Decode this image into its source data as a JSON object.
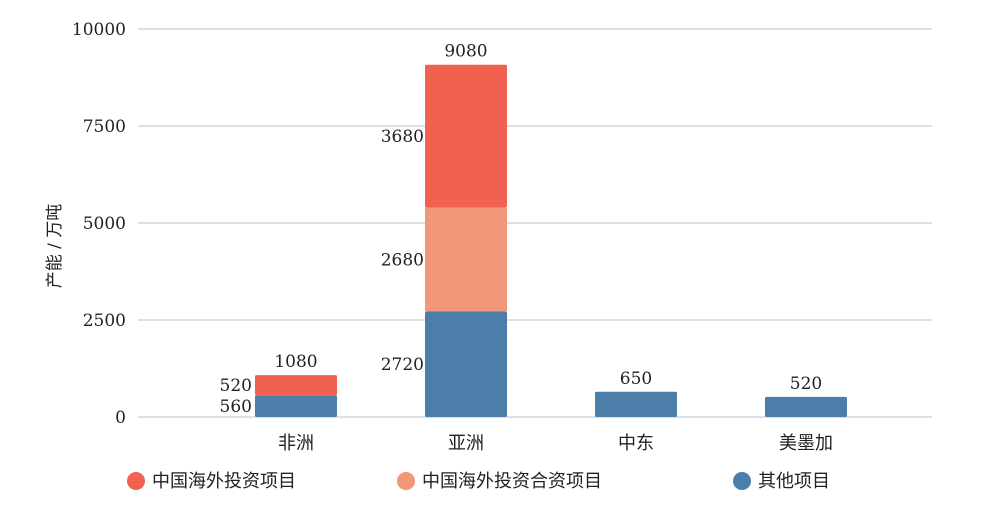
{
  "chart_data": {
    "type": "bar",
    "stacked": true,
    "ylabel": "产能 / 万吨",
    "ylim": [
      0,
      10000
    ],
    "yticks": [
      0,
      2500,
      5000,
      7500,
      10000
    ],
    "grid": true,
    "legend_position": "bottom",
    "categories": [
      "非洲",
      "亚洲",
      "中东",
      "美墨加"
    ],
    "totals": [
      1080,
      9080,
      650,
      520
    ],
    "series": [
      {
        "name": "其他项目",
        "color": "#4b7ea8",
        "values": [
          560,
          2720,
          650,
          520
        ]
      },
      {
        "name": "中国海外投资合资项目",
        "color": "#f3977a",
        "values": [
          0,
          2680,
          0,
          0
        ]
      },
      {
        "name": "中国海外投资项目",
        "color": "#f0624f",
        "values": [
          520,
          3680,
          0,
          0
        ]
      }
    ],
    "legend_order": [
      "中国海外投资项目",
      "中国海外投资合资项目",
      "其他项目"
    ]
  }
}
